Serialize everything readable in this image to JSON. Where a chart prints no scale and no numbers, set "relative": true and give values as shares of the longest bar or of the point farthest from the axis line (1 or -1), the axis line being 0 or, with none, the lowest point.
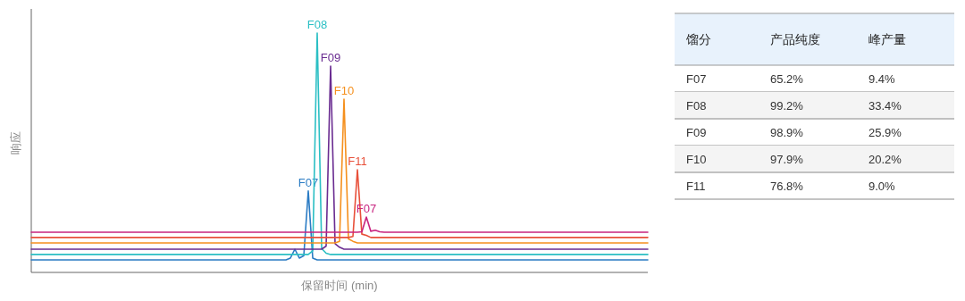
{
  "chart_data": [
    {
      "type": "line",
      "relative": true,
      "ylabel": "响应",
      "xlabel": "保留时间 (min)",
      "categories": [
        null,
        null,
        null,
        null,
        null,
        null,
        null,
        null,
        null,
        null,
        null,
        null,
        null,
        null,
        null,
        null,
        null,
        null,
        null,
        null,
        null,
        null,
        null,
        null,
        null,
        null,
        null,
        null,
        null,
        null,
        null,
        null,
        null,
        null,
        null,
        null,
        null,
        null,
        null,
        null,
        null,
        null,
        null,
        null,
        null,
        null,
        null,
        null,
        null,
        null,
        null,
        null,
        null,
        null,
        null,
        null,
        null,
        null,
        null,
        null,
        null,
        null,
        null,
        null,
        null,
        null,
        null,
        null,
        null,
        null,
        null,
        null,
        null,
        null,
        null,
        null,
        null,
        null,
        null,
        null,
        null,
        null,
        null,
        null,
        null,
        null,
        null,
        null,
        null,
        null,
        null,
        null,
        null,
        null,
        null,
        null,
        null,
        null,
        null,
        null,
        null,
        null,
        null,
        null,
        null,
        null,
        null,
        null,
        null,
        null,
        null,
        null,
        null,
        null,
        null,
        null,
        null,
        null,
        null,
        null,
        null,
        null,
        null,
        null,
        null,
        null,
        null,
        null,
        null,
        null,
        null,
        null,
        null,
        null,
        null,
        null,
        null,
        null,
        null
      ],
      "series": [
        {
          "name": "F07",
          "color": "#2b7cc4",
          "values": [
            0.052,
            0.052,
            0.052,
            0.052,
            0.052,
            0.052,
            0.052,
            0.052,
            0.052,
            0.052,
            0.052,
            0.052,
            0.052,
            0.052,
            0.052,
            0.052,
            0.052,
            0.052,
            0.052,
            0.052,
            0.052,
            0.052,
            0.052,
            0.052,
            0.052,
            0.052,
            0.052,
            0.052,
            0.052,
            0.052,
            0.052,
            0.052,
            0.052,
            0.052,
            0.052,
            0.052,
            0.052,
            0.052,
            0.052,
            0.052,
            0.052,
            0.052,
            0.052,
            0.052,
            0.052,
            0.052,
            0.052,
            0.052,
            0.052,
            0.052,
            0.052,
            0.052,
            0.052,
            0.052,
            0.052,
            0.052,
            0.052,
            0.052,
            0.06,
            0.097,
            0.06,
            0.07,
            0.34,
            0.06,
            0.052,
            0.052,
            0.052,
            0.052,
            0.052,
            0.052,
            0.052,
            0.052,
            0.052,
            0.052,
            0.052,
            0.052,
            0.052,
            0.052,
            0.052,
            0.052,
            0.052,
            0.052,
            0.052,
            0.052,
            0.052,
            0.052,
            0.052,
            0.052,
            0.052,
            0.052,
            0.052,
            0.052,
            0.052,
            0.052,
            0.052,
            0.052,
            0.052,
            0.052,
            0.052,
            0.052,
            0.052,
            0.052,
            0.052,
            0.052,
            0.052,
            0.052,
            0.052,
            0.052,
            0.052,
            0.052,
            0.052,
            0.052,
            0.052,
            0.052,
            0.052,
            0.052,
            0.052,
            0.052,
            0.052,
            0.052,
            0.052,
            0.052,
            0.052,
            0.052,
            0.052,
            0.052,
            0.052,
            0.052,
            0.052,
            0.052,
            0.052,
            0.052,
            0.052,
            0.052,
            0.052,
            0.052,
            0.052,
            0.052,
            0.052
          ]
        },
        {
          "name": "F08",
          "color": "#2bbfc4",
          "values": [
            0.075,
            0.075,
            0.075,
            0.075,
            0.075,
            0.075,
            0.075,
            0.075,
            0.075,
            0.075,
            0.075,
            0.075,
            0.075,
            0.075,
            0.075,
            0.075,
            0.075,
            0.075,
            0.075,
            0.075,
            0.075,
            0.075,
            0.075,
            0.075,
            0.075,
            0.075,
            0.075,
            0.075,
            0.075,
            0.075,
            0.075,
            0.075,
            0.075,
            0.075,
            0.075,
            0.075,
            0.075,
            0.075,
            0.075,
            0.075,
            0.075,
            0.075,
            0.075,
            0.075,
            0.075,
            0.075,
            0.075,
            0.075,
            0.075,
            0.075,
            0.075,
            0.075,
            0.075,
            0.075,
            0.075,
            0.075,
            0.075,
            0.075,
            0.075,
            0.075,
            0.075,
            0.075,
            0.075,
            0.09,
            1,
            0.1,
            0.08,
            0.075,
            0.075,
            0.075,
            0.075,
            0.075,
            0.075,
            0.075,
            0.075,
            0.075,
            0.075,
            0.075,
            0.075,
            0.075,
            0.075,
            0.075,
            0.075,
            0.075,
            0.075,
            0.075,
            0.075,
            0.075,
            0.075,
            0.075,
            0.075,
            0.075,
            0.075,
            0.075,
            0.075,
            0.075,
            0.075,
            0.075,
            0.075,
            0.075,
            0.075,
            0.075,
            0.075,
            0.075,
            0.075,
            0.075,
            0.075,
            0.075,
            0.075,
            0.075,
            0.075,
            0.075,
            0.075,
            0.075,
            0.075,
            0.075,
            0.075,
            0.075,
            0.075,
            0.075,
            0.075,
            0.075,
            0.075,
            0.075,
            0.075,
            0.075,
            0.075,
            0.075,
            0.075,
            0.075,
            0.075,
            0.075,
            0.075,
            0.075,
            0.075,
            0.075,
            0.075,
            0.075,
            0.075
          ]
        },
        {
          "name": "F09",
          "color": "#6a2c91",
          "values": [
            0.097,
            0.097,
            0.097,
            0.097,
            0.097,
            0.097,
            0.097,
            0.097,
            0.097,
            0.097,
            0.097,
            0.097,
            0.097,
            0.097,
            0.097,
            0.097,
            0.097,
            0.097,
            0.097,
            0.097,
            0.097,
            0.097,
            0.097,
            0.097,
            0.097,
            0.097,
            0.097,
            0.097,
            0.097,
            0.097,
            0.097,
            0.097,
            0.097,
            0.097,
            0.097,
            0.097,
            0.097,
            0.097,
            0.097,
            0.097,
            0.097,
            0.097,
            0.097,
            0.097,
            0.097,
            0.097,
            0.097,
            0.097,
            0.097,
            0.097,
            0.097,
            0.097,
            0.097,
            0.097,
            0.097,
            0.097,
            0.097,
            0.097,
            0.097,
            0.097,
            0.097,
            0.097,
            0.097,
            0.097,
            0.097,
            0.097,
            0.11,
            0.862,
            0.12,
            0.105,
            0.097,
            0.097,
            0.097,
            0.097,
            0.097,
            0.097,
            0.097,
            0.097,
            0.097,
            0.097,
            0.097,
            0.097,
            0.097,
            0.097,
            0.097,
            0.097,
            0.097,
            0.097,
            0.097,
            0.097,
            0.097,
            0.097,
            0.097,
            0.097,
            0.097,
            0.097,
            0.097,
            0.097,
            0.097,
            0.097,
            0.097,
            0.097,
            0.097,
            0.097,
            0.097,
            0.097,
            0.097,
            0.097,
            0.097,
            0.097,
            0.097,
            0.097,
            0.097,
            0.097,
            0.097,
            0.097,
            0.097,
            0.097,
            0.097,
            0.097,
            0.097,
            0.097,
            0.097,
            0.097,
            0.097,
            0.097,
            0.097,
            0.097,
            0.097,
            0.097,
            0.097,
            0.097,
            0.097,
            0.097,
            0.097,
            0.097,
            0.097,
            0.097,
            0.097
          ]
        },
        {
          "name": "F10",
          "color": "#f5901e",
          "values": [
            0.123,
            0.123,
            0.123,
            0.123,
            0.123,
            0.123,
            0.123,
            0.123,
            0.123,
            0.123,
            0.123,
            0.123,
            0.123,
            0.123,
            0.123,
            0.123,
            0.123,
            0.123,
            0.123,
            0.123,
            0.123,
            0.123,
            0.123,
            0.123,
            0.123,
            0.123,
            0.123,
            0.123,
            0.123,
            0.123,
            0.123,
            0.123,
            0.123,
            0.123,
            0.123,
            0.123,
            0.123,
            0.123,
            0.123,
            0.123,
            0.123,
            0.123,
            0.123,
            0.123,
            0.123,
            0.123,
            0.123,
            0.123,
            0.123,
            0.123,
            0.123,
            0.123,
            0.123,
            0.123,
            0.123,
            0.123,
            0.123,
            0.123,
            0.123,
            0.123,
            0.123,
            0.123,
            0.123,
            0.123,
            0.123,
            0.123,
            0.123,
            0.123,
            0.123,
            0.13,
            0.724,
            0.14,
            0.13,
            0.123,
            0.123,
            0.123,
            0.123,
            0.123,
            0.123,
            0.123,
            0.123,
            0.123,
            0.123,
            0.123,
            0.123,
            0.123,
            0.123,
            0.123,
            0.123,
            0.123,
            0.123,
            0.123,
            0.123,
            0.123,
            0.123,
            0.123,
            0.123,
            0.123,
            0.123,
            0.123,
            0.123,
            0.123,
            0.123,
            0.123,
            0.123,
            0.123,
            0.123,
            0.123,
            0.123,
            0.123,
            0.123,
            0.123,
            0.123,
            0.123,
            0.123,
            0.123,
            0.123,
            0.123,
            0.123,
            0.123,
            0.123,
            0.123,
            0.123,
            0.123,
            0.123,
            0.123,
            0.123,
            0.123,
            0.123,
            0.123,
            0.123,
            0.123,
            0.123,
            0.123,
            0.123,
            0.123,
            0.123,
            0.123,
            0.123
          ]
        },
        {
          "name": "F11",
          "color": "#e8503a",
          "values": [
            0.146,
            0.146,
            0.146,
            0.146,
            0.146,
            0.146,
            0.146,
            0.146,
            0.146,
            0.146,
            0.146,
            0.146,
            0.146,
            0.146,
            0.146,
            0.146,
            0.146,
            0.146,
            0.146,
            0.146,
            0.146,
            0.146,
            0.146,
            0.146,
            0.146,
            0.146,
            0.146,
            0.146,
            0.146,
            0.146,
            0.146,
            0.146,
            0.146,
            0.146,
            0.146,
            0.146,
            0.146,
            0.146,
            0.146,
            0.146,
            0.146,
            0.146,
            0.146,
            0.146,
            0.146,
            0.146,
            0.146,
            0.146,
            0.146,
            0.146,
            0.146,
            0.146,
            0.146,
            0.146,
            0.146,
            0.146,
            0.146,
            0.146,
            0.146,
            0.146,
            0.146,
            0.146,
            0.146,
            0.146,
            0.146,
            0.146,
            0.146,
            0.146,
            0.146,
            0.146,
            0.146,
            0.146,
            0.15,
            0.429,
            0.16,
            0.155,
            0.146,
            0.146,
            0.146,
            0.146,
            0.146,
            0.146,
            0.146,
            0.146,
            0.146,
            0.146,
            0.146,
            0.146,
            0.146,
            0.146,
            0.146,
            0.146,
            0.146,
            0.146,
            0.146,
            0.146,
            0.146,
            0.146,
            0.146,
            0.146,
            0.146,
            0.146,
            0.146,
            0.146,
            0.146,
            0.146,
            0.146,
            0.146,
            0.146,
            0.146,
            0.146,
            0.146,
            0.146,
            0.146,
            0.146,
            0.146,
            0.146,
            0.146,
            0.146,
            0.146,
            0.146,
            0.146,
            0.146,
            0.146,
            0.146,
            0.146,
            0.146,
            0.146,
            0.146,
            0.146,
            0.146,
            0.146,
            0.146,
            0.146,
            0.146,
            0.146,
            0.146,
            0.146,
            0.146
          ]
        },
        {
          "name": "F07",
          "color": "#c8237f",
          "values": [
            0.168,
            0.168,
            0.168,
            0.168,
            0.168,
            0.168,
            0.168,
            0.168,
            0.168,
            0.168,
            0.168,
            0.168,
            0.168,
            0.168,
            0.168,
            0.168,
            0.168,
            0.168,
            0.168,
            0.168,
            0.168,
            0.168,
            0.168,
            0.168,
            0.168,
            0.168,
            0.168,
            0.168,
            0.168,
            0.168,
            0.168,
            0.168,
            0.168,
            0.168,
            0.168,
            0.168,
            0.168,
            0.168,
            0.168,
            0.168,
            0.168,
            0.168,
            0.168,
            0.168,
            0.168,
            0.168,
            0.168,
            0.168,
            0.168,
            0.168,
            0.168,
            0.168,
            0.168,
            0.168,
            0.168,
            0.168,
            0.168,
            0.168,
            0.168,
            0.168,
            0.168,
            0.168,
            0.168,
            0.168,
            0.168,
            0.168,
            0.168,
            0.168,
            0.168,
            0.168,
            0.168,
            0.168,
            0.168,
            0.168,
            0.17,
            0.231,
            0.172,
            0.176,
            0.17,
            0.168,
            0.168,
            0.168,
            0.168,
            0.168,
            0.168,
            0.168,
            0.168,
            0.168,
            0.168,
            0.168,
            0.168,
            0.168,
            0.168,
            0.168,
            0.168,
            0.168,
            0.168,
            0.168,
            0.168,
            0.168,
            0.168,
            0.168,
            0.168,
            0.168,
            0.168,
            0.168,
            0.168,
            0.168,
            0.168,
            0.168,
            0.168,
            0.168,
            0.168,
            0.168,
            0.168,
            0.168,
            0.168,
            0.168,
            0.168,
            0.168,
            0.168,
            0.168,
            0.168,
            0.168,
            0.168,
            0.168,
            0.168,
            0.168,
            0.168,
            0.168,
            0.168,
            0.168,
            0.168,
            0.168,
            0.168,
            0.168,
            0.168,
            0.168,
            0.168
          ]
        }
      ]
    },
    {
      "type": "other",
      "xlabel": "馏分",
      "categories": [
        "F07",
        "F08",
        "F09",
        "F10",
        "F11"
      ],
      "series": [
        {
          "name": "产品纯度",
          "values": [
            65.2,
            99.2,
            98.9,
            97.9,
            76.8
          ],
          "value_labels": [
            "65.2%",
            "99.2%",
            "98.9%",
            "97.9%",
            "76.8%"
          ]
        },
        {
          "name": "峰产量",
          "values": [
            9.4,
            33.4,
            25.9,
            20.2,
            9.0
          ],
          "value_labels": [
            "9.4%",
            "33.4%",
            "25.9%",
            "20.2%",
            "9.0%"
          ]
        }
      ]
    }
  ]
}
